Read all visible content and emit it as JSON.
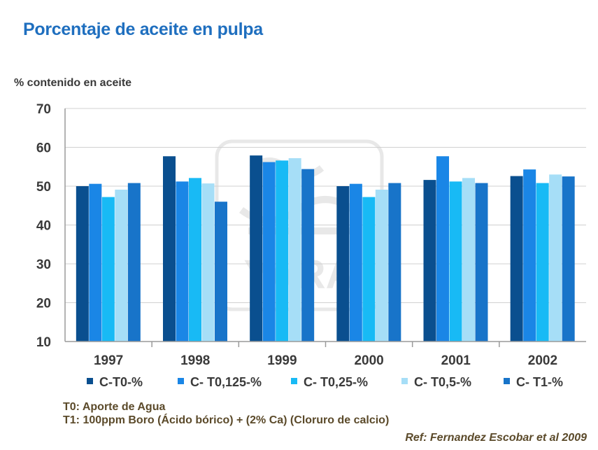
{
  "header": {
    "title": "Porcentaje de aceite en pulpa",
    "y_axis_label": "% contenido en aceite"
  },
  "notes": {
    "t0": "T0: Aporte de Agua",
    "t1": "T1: 100ppm Boro (Ácido bórico) + (2% Ca) (Cloruro de calcio)"
  },
  "reference": "Ref: Fernandez Escobar et al 2009",
  "watermark": "YARA",
  "chart_data": {
    "type": "bar",
    "ylabel": "% contenido en aceite",
    "ylim": [
      10,
      70
    ],
    "yticks": [
      10,
      20,
      30,
      40,
      50,
      60,
      70
    ],
    "categories": [
      "1997",
      "1998",
      "1999",
      "2000",
      "2001",
      "2002"
    ],
    "grid": true,
    "legend_position": "bottom",
    "series": [
      {
        "name": "C-T0-%",
        "color": "#0a4f8f",
        "values": [
          50.0,
          57.7,
          57.9,
          50.0,
          51.6,
          52.6
        ]
      },
      {
        "name": "C- T0,125-%",
        "color": "#1a86e6",
        "values": [
          50.6,
          51.2,
          56.2,
          50.6,
          57.7,
          54.3
        ]
      },
      {
        "name": "C- T0,25-%",
        "color": "#18baf5",
        "values": [
          47.2,
          52.1,
          56.6,
          47.2,
          51.2,
          50.8
        ]
      },
      {
        "name": "C- T0,5-%",
        "color": "#a6def7",
        "values": [
          49.1,
          50.7,
          57.2,
          49.1,
          52.1,
          53.0
        ]
      },
      {
        "name": "C- T1-%",
        "color": "#1874c9",
        "values": [
          50.8,
          46.0,
          54.4,
          50.8,
          50.8,
          52.5
        ]
      }
    ]
  }
}
